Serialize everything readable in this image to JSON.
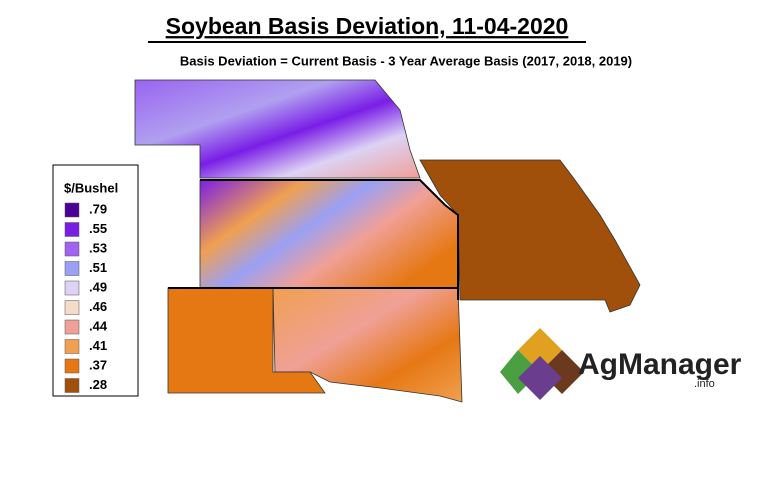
{
  "header": {
    "title": "Soybean Basis Deviation, 11-04-2020",
    "subtitle": "Basis Deviation = Current Basis - 3 Year Average Basis (2017, 2018, 2019)"
  },
  "legend": {
    "title": "$/Bushel",
    "items": [
      {
        "label": ".79",
        "color": "#4b0096"
      },
      {
        "label": ".55",
        "color": "#7a1ee6"
      },
      {
        "label": ".53",
        "color": "#a064f0"
      },
      {
        "label": ".51",
        "color": "#9aa0f5"
      },
      {
        "label": ".49",
        "color": "#dcd2f5"
      },
      {
        "label": ".46",
        "color": "#f5dcc8"
      },
      {
        "label": ".44",
        "color": "#f0a096"
      },
      {
        "label": ".41",
        "color": "#f0a050"
      },
      {
        "label": ".37",
        "color": "#e67814"
      },
      {
        "label": ".28",
        "color": "#a0500a"
      }
    ]
  },
  "logo": {
    "name": "AgManager",
    "suffix": ".info"
  }
}
